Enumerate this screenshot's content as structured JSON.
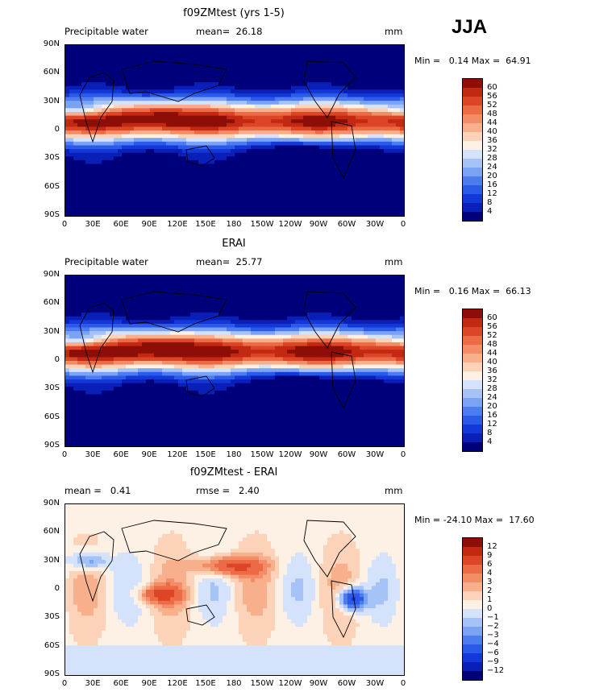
{
  "season": "JJA",
  "colors": {
    "full": [
      "#00007a",
      "#0a1fb8",
      "#1437d8",
      "#2c5ae8",
      "#4d7cf0",
      "#7aa3f5",
      "#a6c3f8",
      "#d4e2fb",
      "#fdf0e4",
      "#fcd2b8",
      "#f8b08c",
      "#f38d67",
      "#ec6a45",
      "#dd4527",
      "#c22812",
      "#8c0e06"
    ],
    "diff": [
      "#00007a",
      "#0a1fb8",
      "#1437d8",
      "#2c5ae8",
      "#4d7cf0",
      "#7aa3f5",
      "#a6c3f8",
      "#d4e2fb",
      "#fdf0e4",
      "#fcd2b8",
      "#f8b08c",
      "#f38d67",
      "#ec6a45",
      "#dd4527",
      "#c22812",
      "#8c0e06"
    ]
  },
  "lat_labels": [
    "90N",
    "60N",
    "30N",
    "0",
    "30S",
    "60S",
    "90S"
  ],
  "lon_labels": [
    "0",
    "30E",
    "60E",
    "90E",
    "120E",
    "150E",
    "180",
    "150W",
    "120W",
    "90W",
    "60W",
    "30W",
    "0"
  ],
  "panels": [
    {
      "title": "f09ZMtest (yrs 1-5)",
      "left_label": "Precipitable water",
      "mid_label": "mean=  26.18",
      "units": "mm",
      "stats": "Min =   0.14 Max =  64.91",
      "type": "full",
      "levels": [
        "60",
        "56",
        "52",
        "48",
        "44",
        "40",
        "36",
        "32",
        "28",
        "24",
        "20",
        "16",
        "12",
        "8",
        "4"
      ]
    },
    {
      "title": "ERAI",
      "left_label": "Precipitable water",
      "mid_label": "mean=  25.77",
      "units": "mm",
      "stats": "Min =   0.16 Max =  66.13",
      "type": "full",
      "levels": [
        "60",
        "56",
        "52",
        "48",
        "44",
        "40",
        "36",
        "32",
        "28",
        "24",
        "20",
        "16",
        "12",
        "8",
        "4"
      ]
    },
    {
      "title": "f09ZMtest - ERAI",
      "left_label": "mean =   0.41",
      "mid_label": "rmse =   2.40",
      "units": "mm",
      "stats": "Min = -24.10 Max =  17.60",
      "type": "diff",
      "levels": [
        "12",
        "9",
        "6",
        "4",
        "3",
        "2",
        "1",
        "0",
        "−1",
        "−2",
        "−3",
        "−4",
        "−6",
        "−9",
        "−12"
      ]
    }
  ]
}
